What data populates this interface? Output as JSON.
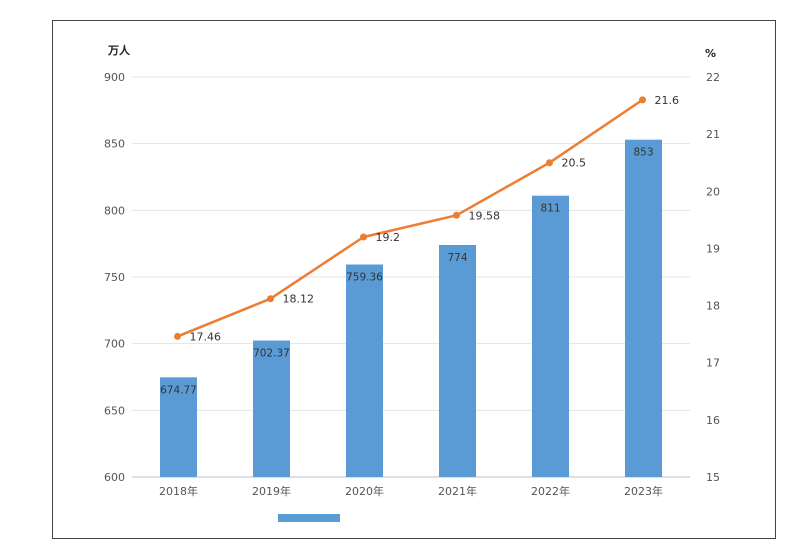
{
  "chart_data": {
    "type": "bar+line",
    "categories": [
      "2018年",
      "2019年",
      "2020年",
      "2021年",
      "2022年",
      "2023年"
    ],
    "series": [
      {
        "type": "bar",
        "axis": "left",
        "values": [
          674.77,
          702.37,
          759.36,
          774,
          811,
          853
        ],
        "labels": [
          "674.77",
          "702.37",
          "759.36",
          "774",
          "811",
          "853"
        ],
        "color": "#5b9bd5"
      },
      {
        "type": "line",
        "axis": "right",
        "values": [
          17.46,
          18.12,
          19.2,
          19.58,
          20.5,
          21.6
        ],
        "labels": [
          "17.46",
          "18.12",
          "19.2",
          "19.58",
          "20.5",
          "21.6"
        ],
        "color": "#ed7d31"
      }
    ],
    "y_left": {
      "unit": "万人",
      "range": [
        600,
        900
      ],
      "ticks": [
        "900",
        "850",
        "800",
        "750",
        "700",
        "650",
        "600"
      ]
    },
    "y_right": {
      "unit": "%",
      "range": [
        15,
        22
      ],
      "ticks": [
        "22",
        "21",
        "20",
        "19",
        "18",
        "17",
        "16",
        "15"
      ]
    },
    "grid": true,
    "legend": "bottom-center"
  }
}
